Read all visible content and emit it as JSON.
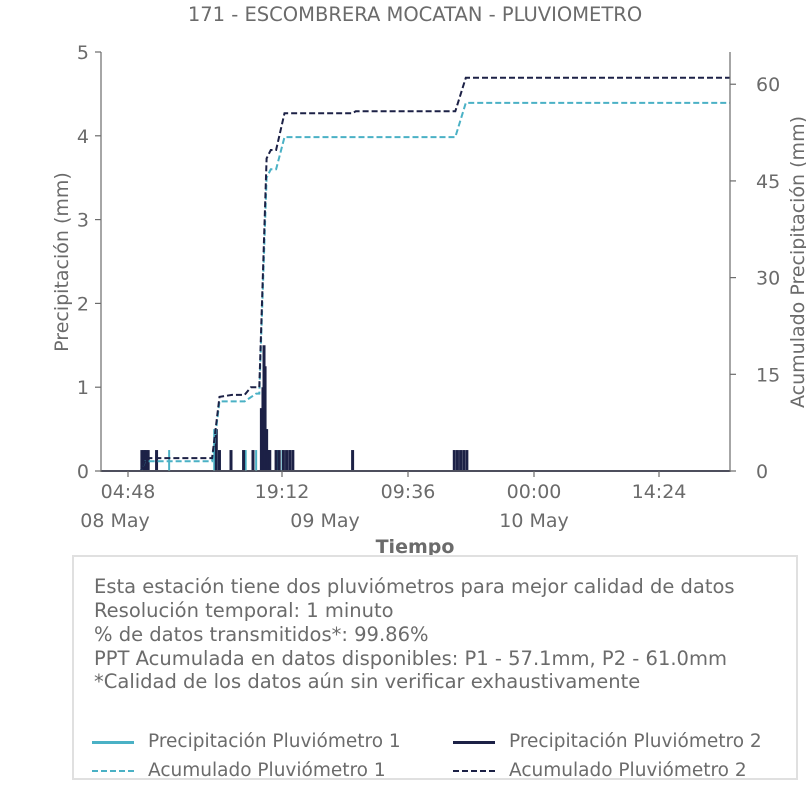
{
  "chart_data": {
    "type": "line",
    "title": "171 - ESCOMBRERA MOCATAN - PLUVIOMETRO",
    "xlabel": "Tiempo",
    "ylabel_left": "Precipitación (mm)",
    "ylabel_right": "Acumulado Precipitación (mm)",
    "ylim_left": [
      0,
      5
    ],
    "ylim_right": [
      0,
      65
    ],
    "yticks_left": [
      "0",
      "1",
      "2",
      "3",
      "4",
      "5"
    ],
    "yticks_right": [
      "0",
      "15",
      "30",
      "45",
      "60"
    ],
    "xticks": [
      {
        "time": "04:48",
        "date": "08 May"
      },
      {
        "time": "19:12",
        "date": "09 May"
      },
      {
        "time": "09:36",
        "date": ""
      },
      {
        "time": "00:00",
        "date": "10 May"
      },
      {
        "time": "14:24",
        "date": ""
      }
    ],
    "x_range_hours": [
      0,
      60
    ],
    "series": [
      {
        "name": "Precipitación Pluviómetro 1",
        "axis": "left",
        "style": "bar",
        "points": [
          [
            4.2,
            0.25
          ],
          [
            6.5,
            0.25
          ],
          [
            10.8,
            0.5
          ],
          [
            13.8,
            0.25
          ],
          [
            14.8,
            0.25
          ],
          [
            15.4,
            0.5
          ],
          [
            15.6,
            0.75
          ],
          [
            15.8,
            0.5
          ],
          [
            16.0,
            0.25
          ],
          [
            16.8,
            0.25
          ],
          [
            17.3,
            0.25
          ],
          [
            18.0,
            0.25
          ],
          [
            18.3,
            0.25
          ]
        ]
      },
      {
        "name": "Precipitación Pluviómetro 2",
        "axis": "left",
        "style": "bar",
        "points": [
          [
            3.9,
            0.25
          ],
          [
            4.1,
            0.25
          ],
          [
            4.3,
            0.25
          ],
          [
            4.5,
            0.25
          ],
          [
            5.3,
            0.25
          ],
          [
            11.0,
            0.5
          ],
          [
            11.3,
            0.25
          ],
          [
            12.4,
            0.25
          ],
          [
            13.6,
            0.25
          ],
          [
            14.5,
            0.25
          ],
          [
            15.3,
            0.75
          ],
          [
            15.45,
            1.0
          ],
          [
            15.55,
            1.5
          ],
          [
            15.65,
            1.25
          ],
          [
            15.8,
            0.5
          ],
          [
            15.95,
            0.25
          ],
          [
            16.1,
            0.25
          ],
          [
            16.7,
            0.25
          ],
          [
            17.0,
            0.25
          ],
          [
            17.4,
            0.25
          ],
          [
            17.7,
            0.25
          ],
          [
            18.0,
            0.25
          ],
          [
            18.3,
            0.25
          ],
          [
            24.0,
            0.25
          ],
          [
            33.7,
            0.25
          ],
          [
            34.0,
            0.25
          ],
          [
            34.3,
            0.25
          ],
          [
            34.6,
            0.25
          ],
          [
            34.9,
            0.25
          ]
        ]
      },
      {
        "name": "Acumulado Pluviómetro 1",
        "axis": "right",
        "style": "dashed",
        "color": "#4ab1c5",
        "points": [
          [
            0,
            0
          ],
          [
            3.8,
            0
          ],
          [
            4.2,
            1.5
          ],
          [
            10.6,
            1.5
          ],
          [
            11.3,
            10.8
          ],
          [
            13.7,
            10.8
          ],
          [
            14.8,
            12.0
          ],
          [
            15.1,
            12.0
          ],
          [
            15.8,
            45.5
          ],
          [
            16.2,
            46.8
          ],
          [
            16.7,
            46.8
          ],
          [
            17.5,
            51.8
          ],
          [
            33.8,
            51.8
          ],
          [
            34.8,
            57.1
          ],
          [
            60,
            57.1
          ]
        ]
      },
      {
        "name": "Acumulado Pluviómetro 2",
        "axis": "right",
        "style": "dashed",
        "color": "#1c2146",
        "points": [
          [
            0,
            0
          ],
          [
            3.8,
            0
          ],
          [
            4.3,
            2.0
          ],
          [
            10.6,
            2.0
          ],
          [
            11.3,
            11.5
          ],
          [
            12.5,
            11.8
          ],
          [
            13.7,
            11.8
          ],
          [
            14.3,
            13.0
          ],
          [
            15.1,
            13.0
          ],
          [
            15.8,
            48.5
          ],
          [
            16.2,
            49.8
          ],
          [
            16.7,
            49.8
          ],
          [
            17.5,
            55.5
          ],
          [
            24.0,
            55.5
          ],
          [
            24.3,
            55.8
          ],
          [
            33.8,
            55.8
          ],
          [
            34.8,
            61.0
          ],
          [
            60,
            61.0
          ]
        ]
      }
    ],
    "colors": {
      "p1": "#4ab1c5",
      "p2": "#1c2146",
      "axis": "#6b6b6b"
    }
  },
  "info": {
    "lines": [
      "Esta estación tiene dos pluviómetros para mejor calidad de datos",
      "Resolución temporal: 1 minuto",
      "% de datos transmitidos*: 99.86%",
      "PPT Acumulada en datos disponibles: P1 - 57.1mm, P2 - 61.0mm",
      "*Calidad de los datos aún sin verificar exhaustivamente"
    ]
  },
  "legend": {
    "p1_precip": "Precipitación Pluviómetro 1",
    "p2_precip": "Precipitación Pluviómetro 2",
    "p1_acum": "Acumulado Pluviómetro 1",
    "p2_acum": "Acumulado Pluviómetro 2"
  }
}
